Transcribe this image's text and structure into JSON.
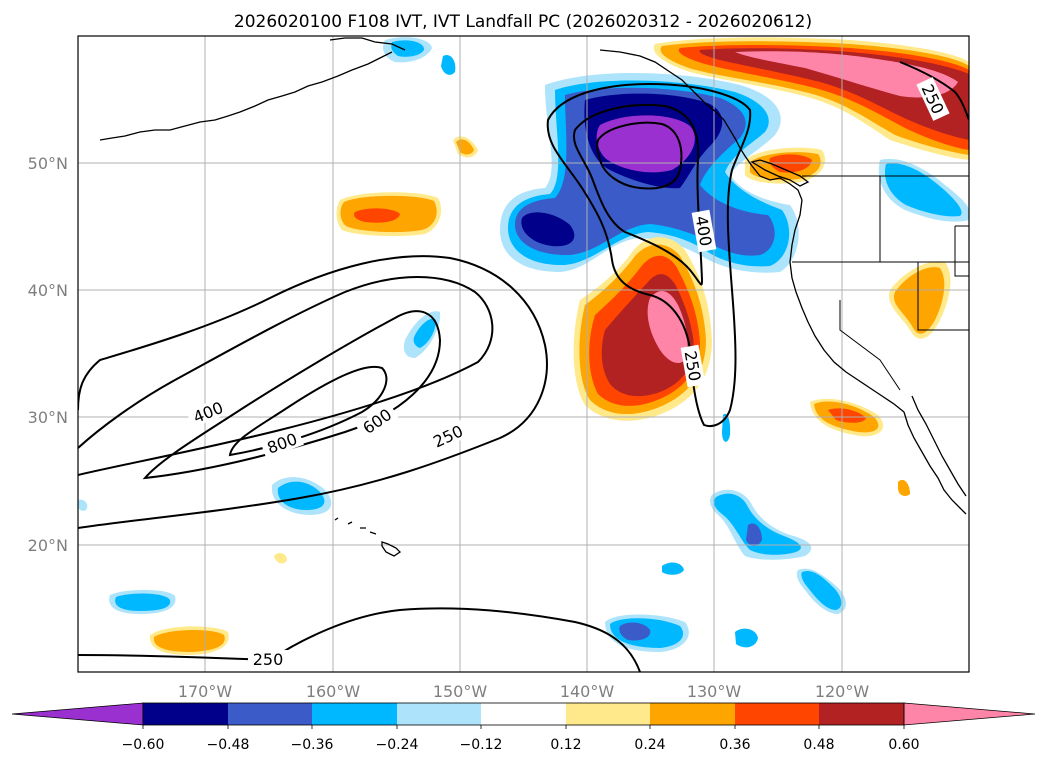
{
  "title": "2026020100 F108 IVT, IVT Landfall PC (2026020312 - 2026020612)",
  "map": {
    "lon_range": [
      -180,
      -110
    ],
    "lat_range": [
      10,
      60
    ],
    "grid": true,
    "lat_labels": [
      "50°N",
      "40°N",
      "30°N",
      "20°N"
    ],
    "lon_labels": [
      "170°W",
      "160°W",
      "150°W",
      "140°W",
      "130°W",
      "120°W"
    ]
  },
  "colorbar": {
    "ticks": [
      "−0.60",
      "−0.48",
      "−0.36",
      "−0.24",
      "−0.12",
      "0.12",
      "0.24",
      "0.36",
      "0.48",
      "0.60"
    ],
    "colors": [
      "#9b30d0",
      "#00008b",
      "#3a5bc8",
      "#00b8ff",
      "#ade4fb",
      "#ffffff",
      "#ffe98a",
      "#ffa500",
      "#ff4500",
      "#b22222",
      "#ff85a8"
    ],
    "extend": "both"
  },
  "contour_labels": {
    "c250_a": "250",
    "c400_a": "400",
    "c800": "800",
    "c600": "600",
    "c250_b": "250",
    "c250_c": "250",
    "c400_b": "400",
    "c250_d": "250"
  },
  "colors": {
    "contour": "#000000",
    "coast": "#000000",
    "grid": "#b0b0b0"
  }
}
